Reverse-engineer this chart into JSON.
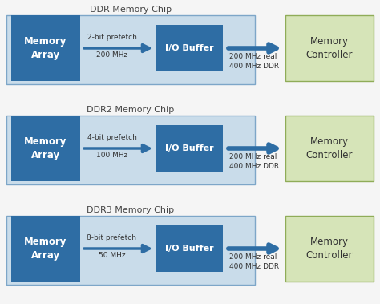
{
  "background_color": "#f5f5f5",
  "rows": [
    {
      "chip_title": "DDR Memory Chip",
      "prefetch": "2-bit prefetch",
      "inner_freq": "200 MHz",
      "outer_freq_line1": "200 MHz real",
      "outer_freq_line2": "400 MHz DDR"
    },
    {
      "chip_title": "DDR2 Memory Chip",
      "prefetch": "4-bit prefetch",
      "inner_freq": "100 MHz",
      "outer_freq_line1": "200 MHz real",
      "outer_freq_line2": "400 MHz DDR"
    },
    {
      "chip_title": "DDR3 Memory Chip",
      "prefetch": "8-bit prefetch",
      "inner_freq": "50 MHz",
      "outer_freq_line1": "200 MHz real",
      "outer_freq_line2": "400 MHz DDR"
    }
  ],
  "color_light_blue_bg": "#c9dcea",
  "color_dark_blue_box": "#2e6da4",
  "color_light_green_box": "#d6e4b8",
  "color_green_border": "#8fac58",
  "color_blue_border": "#7da6c8",
  "color_arrow": "#2e6da4",
  "color_title_text": "#444444",
  "color_white_text": "#ffffff",
  "color_dark_text": "#333333"
}
